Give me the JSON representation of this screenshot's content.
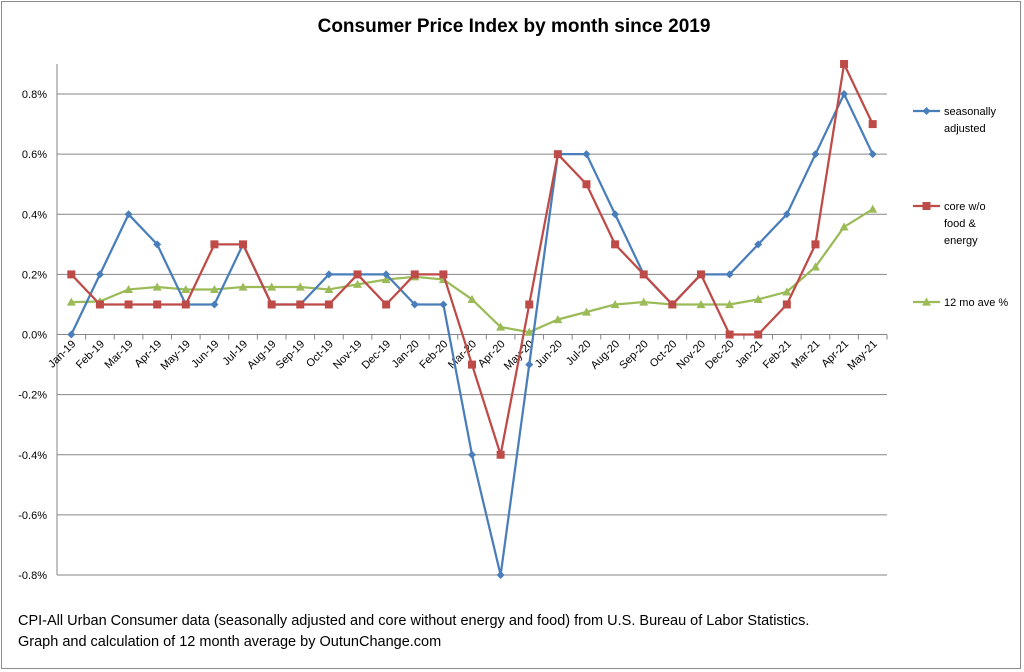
{
  "chart_data": {
    "type": "line",
    "title": "Consumer Price Index by month since 2019",
    "xlabel": "",
    "ylabel": "",
    "ylim": [
      -0.8,
      0.9
    ],
    "yticks": [
      -0.8,
      -0.6,
      -0.4,
      -0.2,
      0.0,
      0.2,
      0.4,
      0.6,
      0.8
    ],
    "ytick_labels": [
      "-0.8%",
      "-0.6%",
      "-0.4%",
      "-0.2%",
      "0.0%",
      "0.2%",
      "0.4%",
      "0.6%",
      "0.8%"
    ],
    "grid": true,
    "legend_position": "right",
    "categories": [
      "Jan-19",
      "Feb-19",
      "Mar-19",
      "Apr-19",
      "May-19",
      "Jun-19",
      "Jul-19",
      "Aug-19",
      "Sep-19",
      "Oct-19",
      "Nov-19",
      "Dec-19",
      "Jan-20",
      "Feb-20",
      "Mar-20",
      "Apr-20",
      "May-20",
      "Jun-20",
      "Jul-20",
      "Aug-20",
      "Sep-20",
      "Oct-20",
      "Nov-20",
      "Dec-20",
      "Jan-21",
      "Feb-21",
      "Mar-21",
      "Apr-21",
      "May-21"
    ],
    "series": [
      {
        "name": "seasonally adjusted",
        "legend_lines": [
          "seasonally",
          "adjusted"
        ],
        "color": "#4A7EBB",
        "marker": "diamond",
        "values": [
          0.0,
          0.2,
          0.4,
          0.3,
          0.1,
          0.1,
          0.3,
          0.1,
          0.1,
          0.2,
          0.2,
          0.2,
          0.1,
          0.1,
          -0.4,
          -0.8,
          -0.1,
          0.6,
          0.6,
          0.4,
          0.2,
          0.1,
          0.2,
          0.2,
          0.3,
          0.4,
          0.6,
          0.8,
          0.6
        ]
      },
      {
        "name": "core w/o food & energy",
        "legend_lines": [
          "core w/o",
          "food &",
          "energy"
        ],
        "color": "#BE4B48",
        "marker": "square",
        "values": [
          0.2,
          0.1,
          0.1,
          0.1,
          0.1,
          0.3,
          0.3,
          0.1,
          0.1,
          0.1,
          0.2,
          0.1,
          0.2,
          0.2,
          -0.1,
          -0.4,
          0.1,
          0.6,
          0.5,
          0.3,
          0.2,
          0.1,
          0.2,
          0.0,
          0.0,
          0.1,
          0.3,
          0.9,
          0.7
        ]
      },
      {
        "name": "12 mo ave %",
        "legend_lines": [
          "12 mo ave %"
        ],
        "color": "#9BBB59",
        "marker": "triangle",
        "values": [
          0.108,
          0.11,
          0.15,
          0.158,
          0.15,
          0.15,
          0.158,
          0.158,
          0.158,
          0.15,
          0.167,
          0.183,
          0.192,
          0.183,
          0.117,
          0.025,
          0.008,
          0.05,
          0.075,
          0.1,
          0.108,
          0.1,
          0.1,
          0.1,
          0.117,
          0.142,
          0.225,
          0.358,
          0.417
        ]
      }
    ]
  },
  "caption": {
    "line1": "CPI-All Urban Consumer data (seasonally adjusted and core without energy and food) from U.S. Bureau of Labor Statistics.",
    "line2": "Graph and calculation of 12 month average by OutunChange.com"
  }
}
